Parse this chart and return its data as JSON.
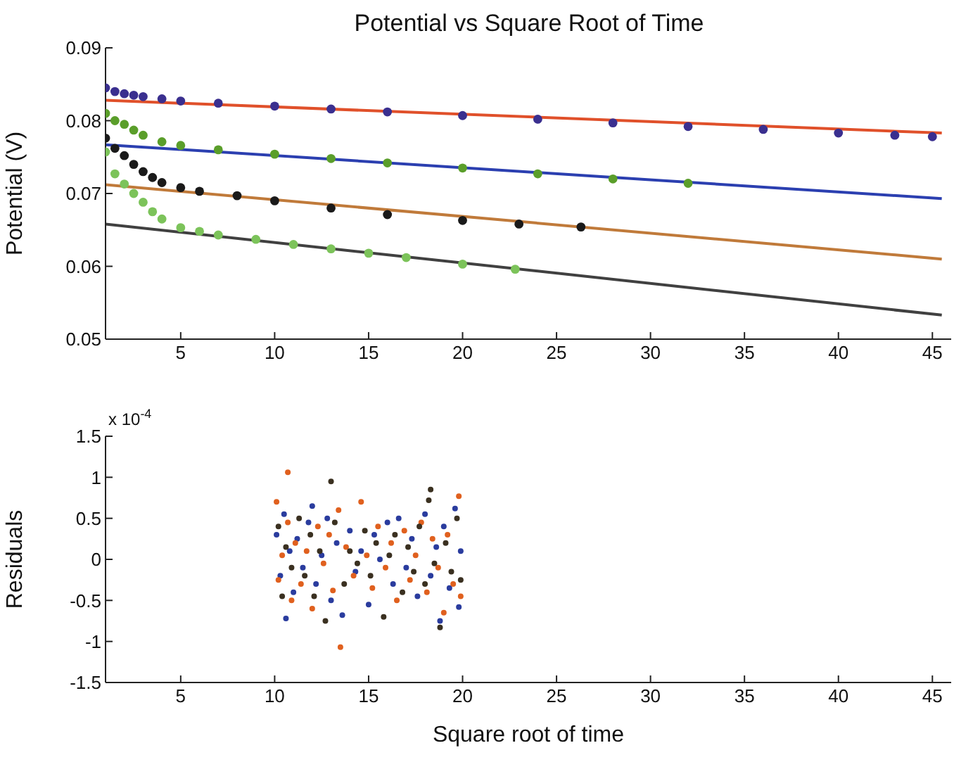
{
  "chart_data": [
    {
      "type": "scatter",
      "title": "Potential vs Square Root of Time",
      "ylabel": "Potential (V)",
      "marker": "circle",
      "xlim": [
        1,
        46
      ],
      "xticks": [
        5,
        10,
        15,
        20,
        25,
        30,
        35,
        40,
        45
      ],
      "ylim": [
        0.05,
        0.09
      ],
      "yticks": [
        0.05,
        0.06,
        0.07,
        0.08,
        0.09
      ],
      "series": [
        {
          "color": "#3a2f8f",
          "x": [
            1,
            1.5,
            2,
            2.5,
            3,
            4,
            5,
            7,
            10,
            13,
            16,
            20,
            24,
            28,
            32,
            36,
            40,
            43,
            45
          ],
          "values": [
            0.0845,
            0.084,
            0.0837,
            0.0835,
            0.0833,
            0.083,
            0.0827,
            0.0824,
            0.082,
            0.0816,
            0.0812,
            0.0807,
            0.0802,
            0.0797,
            0.0792,
            0.0788,
            0.0783,
            0.078,
            0.0778
          ]
        },
        {
          "color": "#5a9e2a",
          "x": [
            1,
            1.5,
            2,
            2.5,
            3,
            4,
            5,
            7,
            10,
            13,
            16,
            20,
            24,
            28,
            32
          ],
          "values": [
            0.081,
            0.08,
            0.0795,
            0.0787,
            0.078,
            0.0771,
            0.0766,
            0.076,
            0.0754,
            0.0748,
            0.0742,
            0.0735,
            0.0727,
            0.072,
            0.0714
          ]
        },
        {
          "color": "#1a1a1a",
          "x": [
            1,
            1.5,
            2,
            2.5,
            3,
            3.5,
            4,
            5,
            6,
            8,
            10,
            13,
            16,
            20,
            23,
            26.3
          ],
          "values": [
            0.0776,
            0.0762,
            0.0752,
            0.074,
            0.073,
            0.0722,
            0.0715,
            0.0708,
            0.0703,
            0.0697,
            0.069,
            0.068,
            0.0671,
            0.0663,
            0.0658,
            0.0654
          ]
        },
        {
          "color": "#7cc35a",
          "x": [
            1,
            1.5,
            2,
            2.5,
            3,
            3.5,
            4,
            5,
            6,
            7,
            9,
            11,
            13,
            15,
            17,
            20,
            22.8
          ],
          "values": [
            0.0757,
            0.0727,
            0.0713,
            0.07,
            0.0688,
            0.0675,
            0.0665,
            0.0653,
            0.0648,
            0.0643,
            0.0637,
            0.063,
            0.0624,
            0.0618,
            0.0612,
            0.0603,
            0.0596
          ]
        },
        {
          "type": "line",
          "marker": "none",
          "color": "#e0502a",
          "x": [
            1,
            45.5
          ],
          "values": [
            0.0828,
            0.0783
          ]
        },
        {
          "type": "line",
          "marker": "none",
          "color": "#2b3fb0",
          "x": [
            1,
            45.5
          ],
          "values": [
            0.0767,
            0.0693
          ]
        },
        {
          "type": "line",
          "marker": "none",
          "color": "#c07a3a",
          "x": [
            1,
            45.5
          ],
          "values": [
            0.0712,
            0.061
          ]
        },
        {
          "type": "line",
          "marker": "none",
          "color": "#404040",
          "x": [
            1,
            45.5
          ],
          "values": [
            0.0658,
            0.0533
          ]
        }
      ]
    },
    {
      "type": "scatter",
      "xlabel": "Square root of time",
      "ylabel": "Residuals",
      "annotations": [
        "x 10$^{-4}$"
      ],
      "marker": "circle",
      "xlim": [
        1,
        46
      ],
      "xticks": [
        5,
        10,
        15,
        20,
        25,
        30,
        35,
        40,
        45
      ],
      "ylim": [
        -1.5,
        1.5
      ],
      "yticks": [
        -1.5,
        -1,
        -0.5,
        0,
        0.5,
        1,
        1.5
      ],
      "series": [
        {
          "color": "#2a3c9e",
          "x": [
            10.1,
            10.3,
            10.5,
            10.6,
            10.8,
            11,
            11.2,
            11.5,
            11.8,
            12,
            12.2,
            12.5,
            12.8,
            13,
            13.3,
            13.6,
            14,
            14.3,
            14.6,
            15,
            15.3,
            15.6,
            16,
            16.3,
            16.6,
            17,
            17.3,
            17.6,
            18,
            18.3,
            18.6,
            18.8,
            19,
            19.3,
            19.6,
            19.8,
            19.9
          ],
          "values": [
            0.3,
            -0.2,
            0.55,
            -0.72,
            0.1,
            -0.4,
            0.25,
            -0.1,
            0.45,
            0.65,
            -0.3,
            0.05,
            0.5,
            -0.5,
            0.2,
            -0.68,
            0.35,
            -0.15,
            0.1,
            -0.55,
            0.3,
            0,
            0.45,
            -0.3,
            0.5,
            -0.1,
            0.25,
            -0.45,
            0.55,
            -0.2,
            0.15,
            -0.75,
            0.4,
            -0.35,
            0.62,
            -0.58,
            0.1
          ]
        },
        {
          "color": "#e0601e",
          "x": [
            10.1,
            10.2,
            10.4,
            10.7,
            10.9,
            11.1,
            11.4,
            11.7,
            12,
            12.3,
            12.6,
            12.9,
            13.1,
            13.4,
            13.5,
            13.8,
            14.2,
            14.6,
            14.9,
            15.2,
            15.5,
            15.9,
            16.2,
            16.5,
            16.9,
            17.2,
            17.5,
            17.8,
            18.1,
            18.4,
            18.7,
            19,
            19.2,
            19.5,
            19.8,
            19.9,
            10.7
          ],
          "values": [
            0.7,
            -0.25,
            0.05,
            0.45,
            -0.5,
            0.2,
            -0.3,
            0.1,
            -0.6,
            0.4,
            -0.05,
            0.3,
            -0.38,
            0.6,
            -1.07,
            0.15,
            -0.2,
            0.7,
            0.05,
            -0.35,
            0.4,
            -0.1,
            0.2,
            -0.5,
            0.35,
            -0.25,
            0.05,
            0.45,
            -0.4,
            0.25,
            -0.1,
            -0.65,
            0.3,
            -0.3,
            0.77,
            -0.45,
            1.06
          ]
        },
        {
          "color": "#3a3020",
          "x": [
            10.2,
            10.4,
            10.6,
            10.9,
            11.3,
            11.6,
            11.9,
            12.1,
            12.4,
            12.7,
            13,
            13.2,
            13.7,
            14,
            14.4,
            14.8,
            15.1,
            15.4,
            15.8,
            16.1,
            16.4,
            16.8,
            17.1,
            17.4,
            17.7,
            18,
            18.2,
            18.3,
            18.5,
            18.8,
            19.1,
            19.4,
            19.7,
            19.9
          ],
          "values": [
            0.4,
            -0.45,
            0.15,
            -0.1,
            0.5,
            -0.2,
            0.3,
            -0.45,
            0.1,
            -0.75,
            0.95,
            0.45,
            -0.3,
            0.1,
            -0.05,
            0.35,
            -0.2,
            0.2,
            -0.7,
            0.05,
            0.3,
            -0.4,
            0.15,
            -0.15,
            0.4,
            -0.3,
            0.72,
            0.85,
            -0.05,
            -0.83,
            0.2,
            -0.15,
            0.5,
            -0.25
          ]
        }
      ]
    }
  ]
}
